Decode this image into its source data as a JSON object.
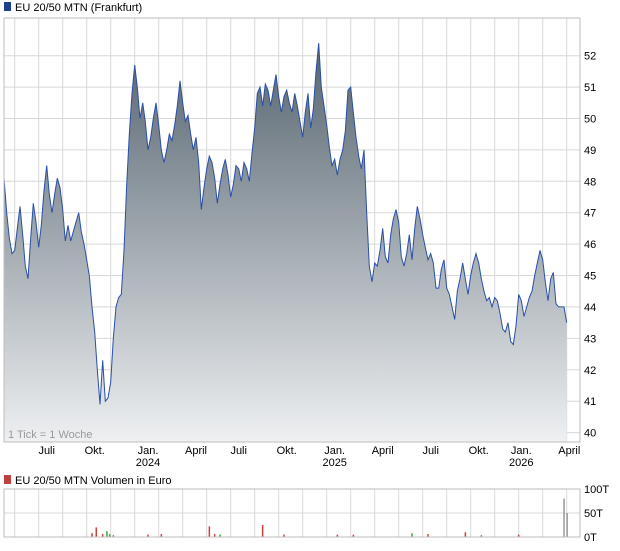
{
  "colors": {
    "line": "#2a4fa8",
    "fill_top": "#56646f",
    "fill_bottom": "#eef0f2",
    "grid": "#d8d8d8",
    "price_legend": "#1f3f8f",
    "volume_legend": "#c04040",
    "volume_up": "#3aa83a",
    "volume_down": "#d04040",
    "volume_neutral": "#999999"
  },
  "chart_data": [
    {
      "type": "area",
      "title": "EU 20/50 MTN (Frankfurt)",
      "annotation": "1 Tick = 1 Woche",
      "xlim": [
        0,
        108
      ],
      "ylim": [
        39.7,
        53.2
      ],
      "y_ticks": [
        40,
        41,
        42,
        43,
        44,
        45,
        46,
        47,
        48,
        49,
        50,
        51,
        52
      ],
      "x_ticks": [
        {
          "x": 8,
          "label": "Juli",
          "sub": ""
        },
        {
          "x": 17,
          "label": "Okt.",
          "sub": ""
        },
        {
          "x": 27,
          "label": "Jan.",
          "sub": "2024"
        },
        {
          "x": 36,
          "label": "April",
          "sub": ""
        },
        {
          "x": 44,
          "label": "Juli",
          "sub": ""
        },
        {
          "x": 53,
          "label": "Okt.",
          "sub": ""
        },
        {
          "x": 62,
          "label": "Jan.",
          "sub": "2025"
        },
        {
          "x": 71,
          "label": "April",
          "sub": ""
        },
        {
          "x": 80,
          "label": "Juli",
          "sub": ""
        },
        {
          "x": 89,
          "label": "Okt.",
          "sub": ""
        },
        {
          "x": 97,
          "label": "Jan.",
          "sub": "2026"
        },
        {
          "x": 106,
          "label": "April",
          "sub": ""
        }
      ],
      "grid": true,
      "series": [
        {
          "values": [
            [
              0,
              48.1
            ],
            [
              0.5,
              47.0
            ],
            [
              1,
              46.2
            ],
            [
              1.5,
              45.7
            ],
            [
              2,
              45.8
            ],
            [
              2.5,
              46.5
            ],
            [
              3,
              47.2
            ],
            [
              3.5,
              46.3
            ],
            [
              4,
              45.3
            ],
            [
              4.5,
              44.9
            ],
            [
              5,
              46.2
            ],
            [
              5.5,
              47.3
            ],
            [
              6,
              46.7
            ],
            [
              6.5,
              45.9
            ],
            [
              7,
              46.6
            ],
            [
              7.5,
              47.7
            ],
            [
              8,
              48.5
            ],
            [
              8.5,
              47.6
            ],
            [
              9,
              47.0
            ],
            [
              9.5,
              47.6
            ],
            [
              10,
              48.1
            ],
            [
              10.5,
              47.8
            ],
            [
              11,
              47.1
            ],
            [
              11.5,
              46.1
            ],
            [
              12,
              46.6
            ],
            [
              12.5,
              46.1
            ],
            [
              13,
              46.4
            ],
            [
              13.5,
              46.7
            ],
            [
              14,
              47.0
            ],
            [
              14.5,
              46.4
            ],
            [
              15,
              46.0
            ],
            [
              15.5,
              45.5
            ],
            [
              16,
              45.0
            ],
            [
              16.5,
              44.0
            ],
            [
              17,
              43.2
            ],
            [
              17.5,
              42.0
            ],
            [
              18,
              40.9
            ],
            [
              18.5,
              42.3
            ],
            [
              19,
              41.0
            ],
            [
              19.5,
              41.1
            ],
            [
              20,
              41.6
            ],
            [
              20.5,
              43.0
            ],
            [
              21,
              44.0
            ],
            [
              21.5,
              44.3
            ],
            [
              22,
              44.4
            ],
            [
              22.5,
              45.8
            ],
            [
              23,
              47.9
            ],
            [
              23.5,
              49.5
            ],
            [
              24,
              50.8
            ],
            [
              24.5,
              51.7
            ],
            [
              25,
              51.0
            ],
            [
              25.5,
              50.0
            ],
            [
              26,
              50.5
            ],
            [
              26.5,
              49.9
            ],
            [
              27,
              49.0
            ],
            [
              27.5,
              49.4
            ],
            [
              28,
              50.0
            ],
            [
              28.5,
              50.5
            ],
            [
              29,
              49.8
            ],
            [
              29.5,
              49.0
            ],
            [
              30,
              48.6
            ],
            [
              30.5,
              49.0
            ],
            [
              31,
              49.5
            ],
            [
              31.5,
              49.3
            ],
            [
              32,
              49.8
            ],
            [
              32.5,
              50.4
            ],
            [
              33,
              51.2
            ],
            [
              33.5,
              50.5
            ],
            [
              34,
              49.9
            ],
            [
              34.5,
              50.1
            ],
            [
              35,
              49.5
            ],
            [
              35.5,
              49.0
            ],
            [
              36,
              49.4
            ],
            [
              36.5,
              48.6
            ],
            [
              37,
              47.1
            ],
            [
              37.5,
              47.8
            ],
            [
              38,
              48.4
            ],
            [
              38.5,
              48.8
            ],
            [
              39,
              48.6
            ],
            [
              39.5,
              48.1
            ],
            [
              40,
              47.3
            ],
            [
              40.5,
              47.9
            ],
            [
              41,
              48.4
            ],
            [
              41.5,
              48.7
            ],
            [
              42,
              48.2
            ],
            [
              42.5,
              47.5
            ],
            [
              43,
              47.9
            ],
            [
              43.5,
              48.5
            ],
            [
              44,
              48.4
            ],
            [
              44.5,
              48.0
            ],
            [
              45,
              48.6
            ],
            [
              45.5,
              48.4
            ],
            [
              46,
              48.0
            ],
            [
              46.5,
              48.9
            ],
            [
              47,
              49.7
            ],
            [
              47.5,
              50.8
            ],
            [
              48,
              51.0
            ],
            [
              48.5,
              50.4
            ],
            [
              49,
              51.1
            ],
            [
              49.5,
              50.9
            ],
            [
              50,
              50.4
            ],
            [
              50.5,
              50.9
            ],
            [
              51,
              51.4
            ],
            [
              51.5,
              50.7
            ],
            [
              52,
              50.2
            ],
            [
              52.5,
              50.7
            ],
            [
              53,
              50.9
            ],
            [
              53.5,
              50.5
            ],
            [
              54,
              50.2
            ],
            [
              54.5,
              50.8
            ],
            [
              55,
              50.4
            ],
            [
              55.5,
              49.9
            ],
            [
              56,
              49.4
            ],
            [
              56.5,
              50.2
            ],
            [
              57,
              50.8
            ],
            [
              57.5,
              49.7
            ],
            [
              58,
              50.3
            ],
            [
              58.5,
              51.5
            ],
            [
              59,
              52.4
            ],
            [
              59.5,
              51.0
            ],
            [
              60,
              50.4
            ],
            [
              60.5,
              49.8
            ],
            [
              61,
              49.1
            ],
            [
              61.5,
              48.5
            ],
            [
              62,
              48.7
            ],
            [
              62.5,
              48.2
            ],
            [
              63,
              48.7
            ],
            [
              63.5,
              49.0
            ],
            [
              64,
              49.6
            ],
            [
              64.5,
              50.9
            ],
            [
              65,
              51.0
            ],
            [
              65.5,
              50.2
            ],
            [
              66,
              49.4
            ],
            [
              66.5,
              48.8
            ],
            [
              67,
              48.4
            ],
            [
              67.5,
              49.0
            ],
            [
              68,
              47.0
            ],
            [
              68.5,
              45.3
            ],
            [
              69,
              44.8
            ],
            [
              69.5,
              45.4
            ],
            [
              70,
              45.3
            ],
            [
              70.5,
              45.8
            ],
            [
              71,
              46.5
            ],
            [
              71.5,
              45.6
            ],
            [
              72,
              45.4
            ],
            [
              72.5,
              46.3
            ],
            [
              73,
              46.8
            ],
            [
              73.5,
              47.1
            ],
            [
              74,
              46.7
            ],
            [
              74.5,
              45.6
            ],
            [
              75,
              45.3
            ],
            [
              75.5,
              45.7
            ],
            [
              76,
              46.3
            ],
            [
              76.5,
              45.5
            ],
            [
              77,
              46.5
            ],
            [
              77.5,
              47.2
            ],
            [
              78,
              46.8
            ],
            [
              78.5,
              46.3
            ],
            [
              79,
              45.9
            ],
            [
              79.5,
              45.5
            ],
            [
              80,
              45.7
            ],
            [
              80.5,
              45.4
            ],
            [
              81,
              44.6
            ],
            [
              81.5,
              44.6
            ],
            [
              82,
              45.2
            ],
            [
              82.5,
              45.5
            ],
            [
              83,
              44.6
            ],
            [
              83.5,
              44.4
            ],
            [
              84,
              44.0
            ],
            [
              84.5,
              43.6
            ],
            [
              85,
              44.5
            ],
            [
              85.5,
              44.9
            ],
            [
              86,
              45.4
            ],
            [
              86.5,
              44.9
            ],
            [
              87,
              44.4
            ],
            [
              87.5,
              45.0
            ],
            [
              88,
              45.4
            ],
            [
              88.5,
              45.7
            ],
            [
              89,
              45.4
            ],
            [
              89.5,
              44.9
            ],
            [
              90,
              44.5
            ],
            [
              90.5,
              44.2
            ],
            [
              91,
              44.3
            ],
            [
              91.5,
              44.0
            ],
            [
              92,
              44.3
            ],
            [
              92.5,
              44.2
            ],
            [
              93,
              43.8
            ],
            [
              93.5,
              43.3
            ],
            [
              94,
              43.2
            ],
            [
              94.5,
              43.5
            ],
            [
              95,
              42.9
            ],
            [
              95.5,
              42.8
            ],
            [
              96,
              43.4
            ],
            [
              96.5,
              44.4
            ],
            [
              97,
              44.2
            ],
            [
              97.5,
              43.7
            ],
            [
              98,
              44.0
            ],
            [
              98.5,
              44.3
            ],
            [
              99,
              44.5
            ],
            [
              99.5,
              45.0
            ],
            [
              100,
              45.4
            ],
            [
              100.5,
              45.8
            ],
            [
              101,
              45.5
            ],
            [
              101.5,
              44.8
            ],
            [
              102,
              44.2
            ],
            [
              102.5,
              44.9
            ],
            [
              103,
              45.1
            ],
            [
              103.5,
              44.1
            ],
            [
              104,
              44.0
            ],
            [
              104.5,
              44.0
            ],
            [
              105,
              44.0
            ],
            [
              105.5,
              43.5
            ]
          ]
        }
      ]
    },
    {
      "type": "bar",
      "title": "EU 20/50 MTN Volumen in Euro",
      "xlim": [
        0,
        108
      ],
      "ylim": [
        0,
        100
      ],
      "unit": "T",
      "y_ticks": [
        {
          "value": 100,
          "label": "100T"
        },
        {
          "value": 50,
          "label": "50T"
        },
        {
          "value": 0,
          "label": "0T"
        }
      ],
      "grid": true,
      "series": [
        {
          "values": [
            [
              16.5,
              8,
              "down"
            ],
            [
              17.3,
              20,
              "down"
            ],
            [
              18.5,
              6,
              "down"
            ],
            [
              19.3,
              12,
              "up"
            ],
            [
              19.8,
              6,
              "up"
            ],
            [
              20.5,
              4,
              "up"
            ],
            [
              27,
              5,
              "down"
            ],
            [
              29.5,
              6,
              "down"
            ],
            [
              38.5,
              22,
              "down"
            ],
            [
              39.5,
              6,
              "down"
            ],
            [
              40.5,
              5,
              "up"
            ],
            [
              48.5,
              25,
              "down"
            ],
            [
              52.5,
              5,
              "down"
            ],
            [
              62.5,
              5,
              "down"
            ],
            [
              65.5,
              5,
              "down"
            ],
            [
              76.5,
              8,
              "up"
            ],
            [
              79.5,
              6,
              "down"
            ],
            [
              86.5,
              10,
              "down"
            ],
            [
              89.5,
              4,
              "up"
            ],
            [
              96.5,
              5,
              "down"
            ],
            [
              105,
              80,
              "neutral"
            ],
            [
              105.6,
              50,
              "neutral"
            ]
          ]
        }
      ]
    }
  ]
}
